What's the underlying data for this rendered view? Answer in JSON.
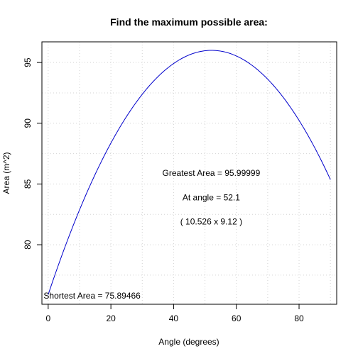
{
  "chart_data": {
    "type": "line",
    "title": "Find the maximum possible area:",
    "xlabel": "Angle (degrees)",
    "ylabel": "Area (m^2)",
    "xlim": [
      -2,
      92
    ],
    "ylim": [
      75.1,
      96.7
    ],
    "x_ticks": [
      0,
      20,
      40,
      60,
      80
    ],
    "y_ticks": [
      80,
      85,
      90,
      95
    ],
    "grid": true,
    "series": [
      {
        "color": "#0000cc",
        "function": "quadratic",
        "x_range": [
          0,
          90
        ],
        "vertex": [
          52.1,
          95.99999
        ],
        "start_value": 75.89466
      }
    ],
    "annotations": [
      {
        "text": "Greatest Area =  95.99999",
        "x": 52,
        "y": 85.9
      },
      {
        "text": "At angle = 52.1",
        "x": 52,
        "y": 83.9
      },
      {
        "text": "( 10.526 x 9.12 )",
        "x": 52,
        "y": 81.9
      },
      {
        "text": "Shortest Area =  75.89466",
        "x": 14,
        "y": 75.8
      }
    ]
  }
}
